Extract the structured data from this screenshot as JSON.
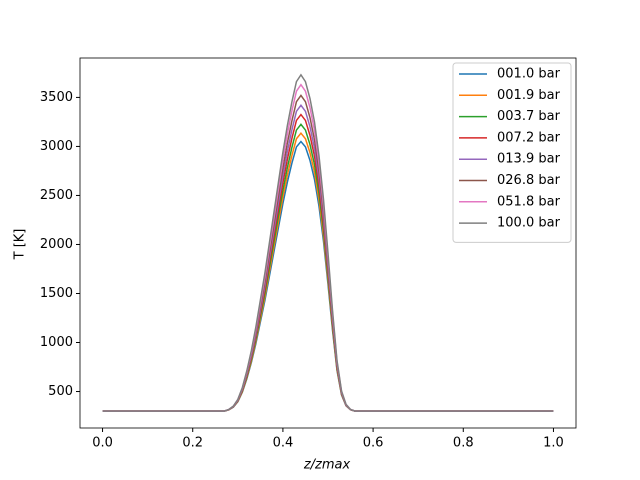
{
  "chart_data": {
    "type": "line",
    "xlabel": "z/zmax",
    "ylabel": "T [K]",
    "x": [
      0,
      0.1,
      0.2,
      0.27,
      0.28,
      0.29,
      0.3,
      0.31,
      0.32,
      0.33,
      0.34,
      0.35,
      0.36,
      0.37,
      0.38,
      0.39,
      0.4,
      0.41,
      0.42,
      0.43,
      0.44,
      0.45,
      0.46,
      0.47,
      0.48,
      0.49,
      0.5,
      0.51,
      0.52,
      0.53,
      0.54,
      0.55,
      0.56,
      0.6,
      0.8,
      1.0
    ],
    "series": [
      {
        "name": "001.0 bar",
        "color": "#1f77b4",
        "values": [
          300,
          300,
          300,
          300,
          314,
          341,
          396,
          493,
          630,
          795,
          988,
          1208,
          1428,
          1675,
          1923,
          2170,
          2418,
          2638,
          2830,
          2995,
          3050,
          2995,
          2858,
          2665,
          2390,
          2033,
          1593,
          1125,
          713,
          465,
          355,
          314,
          300,
          300,
          300,
          300
        ]
      },
      {
        "name": "001.9 bar",
        "color": "#ff7f0e",
        "values": [
          300,
          300,
          300,
          300,
          314,
          343,
          399,
          498,
          640,
          810,
          1009,
          1236,
          1462,
          1718,
          1973,
          2228,
          2483,
          2710,
          2908,
          3078,
          3135,
          3078,
          2937,
          2738,
          2455,
          2086,
          1632,
          1151,
          725,
          470,
          357,
          314,
          300,
          300,
          300,
          300
        ]
      },
      {
        "name": "003.7 bar",
        "color": "#2ca02c",
        "values": [
          300,
          300,
          300,
          300,
          315,
          344,
          402,
          505,
          651,
          827,
          1031,
          1265,
          1499,
          1763,
          2026,
          2289,
          2552,
          2786,
          2991,
          3167,
          3225,
          3167,
          3020,
          2816,
          2523,
          2143,
          1675,
          1178,
          739,
          476,
          359,
          315,
          300,
          300,
          300,
          300
        ]
      },
      {
        "name": "007.2 bar",
        "color": "#d62728",
        "values": [
          300,
          300,
          300,
          300,
          315,
          345,
          406,
          512,
          663,
          845,
          1056,
          1298,
          1540,
          1813,
          2085,
          2357,
          2629,
          2871,
          3083,
          3265,
          3325,
          3265,
          3113,
          2902,
          2599,
          2206,
          1722,
          1208,
          754,
          482,
          361,
          315,
          300,
          300,
          300,
          300
        ]
      },
      {
        "name": "013.9 bar",
        "color": "#9467bd",
        "values": [
          300,
          300,
          300,
          300,
          316,
          347,
          409,
          518,
          674,
          862,
          1080,
          1330,
          1579,
          1860,
          2141,
          2422,
          2702,
          2952,
          3170,
          3358,
          3420,
          3358,
          3202,
          2983,
          2671,
          2266,
          1766,
          1236,
          768,
          487,
          362,
          316,
          300,
          300,
          300,
          300
        ]
      },
      {
        "name": "026.8 bar",
        "color": "#8c564b",
        "values": [
          300,
          300,
          300,
          300,
          316,
          348,
          413,
          525,
          686,
          880,
          1105,
          1363,
          1620,
          1910,
          2200,
          2490,
          2779,
          3037,
          3262,
          3456,
          3520,
          3456,
          3295,
          3069,
          2747,
          2329,
          1813,
          1266,
          783,
          493,
          364,
          316,
          300,
          300,
          300,
          300
        ]
      },
      {
        "name": "051.8 bar",
        "color": "#e377c2",
        "values": [
          300,
          300,
          300,
          300,
          317,
          350,
          417,
          533,
          700,
          899,
          1133,
          1399,
          1665,
          1965,
          2265,
          2564,
          2864,
          3131,
          3364,
          3563,
          3630,
          3563,
          3397,
          3164,
          2831,
          2398,
          1865,
          1299,
          800,
          500,
          367,
          317,
          300,
          300,
          300,
          300
        ]
      },
      {
        "name": "100.0 bar",
        "color": "#7f7f7f",
        "values": [
          300,
          300,
          300,
          300,
          317,
          351,
          420,
          540,
          712,
          917,
          1158,
          1432,
          1706,
          2015,
          2324,
          2632,
          2941,
          3216,
          3456,
          3661,
          3730,
          3661,
          3490,
          3250,
          2907,
          2461,
          1912,
          1329,
          815,
          506,
          369,
          317,
          300,
          300,
          300,
          300
        ]
      }
    ],
    "xlim": [
      -0.05,
      1.05
    ],
    "xticks": [
      {
        "value": 0,
        "label": "0.0"
      },
      {
        "value": 0.2,
        "label": "0.2"
      },
      {
        "value": 0.4,
        "label": "0.4"
      },
      {
        "value": 0.6,
        "label": "0.6"
      },
      {
        "value": 0.8,
        "label": "0.8"
      },
      {
        "value": 1.0,
        "label": "1.0"
      }
    ],
    "ylim": [
      128,
      3902
    ],
    "yticks": [
      500,
      1000,
      1500,
      2000,
      2500,
      3000,
      3500
    ],
    "legend": "upper right",
    "grid": false
  }
}
